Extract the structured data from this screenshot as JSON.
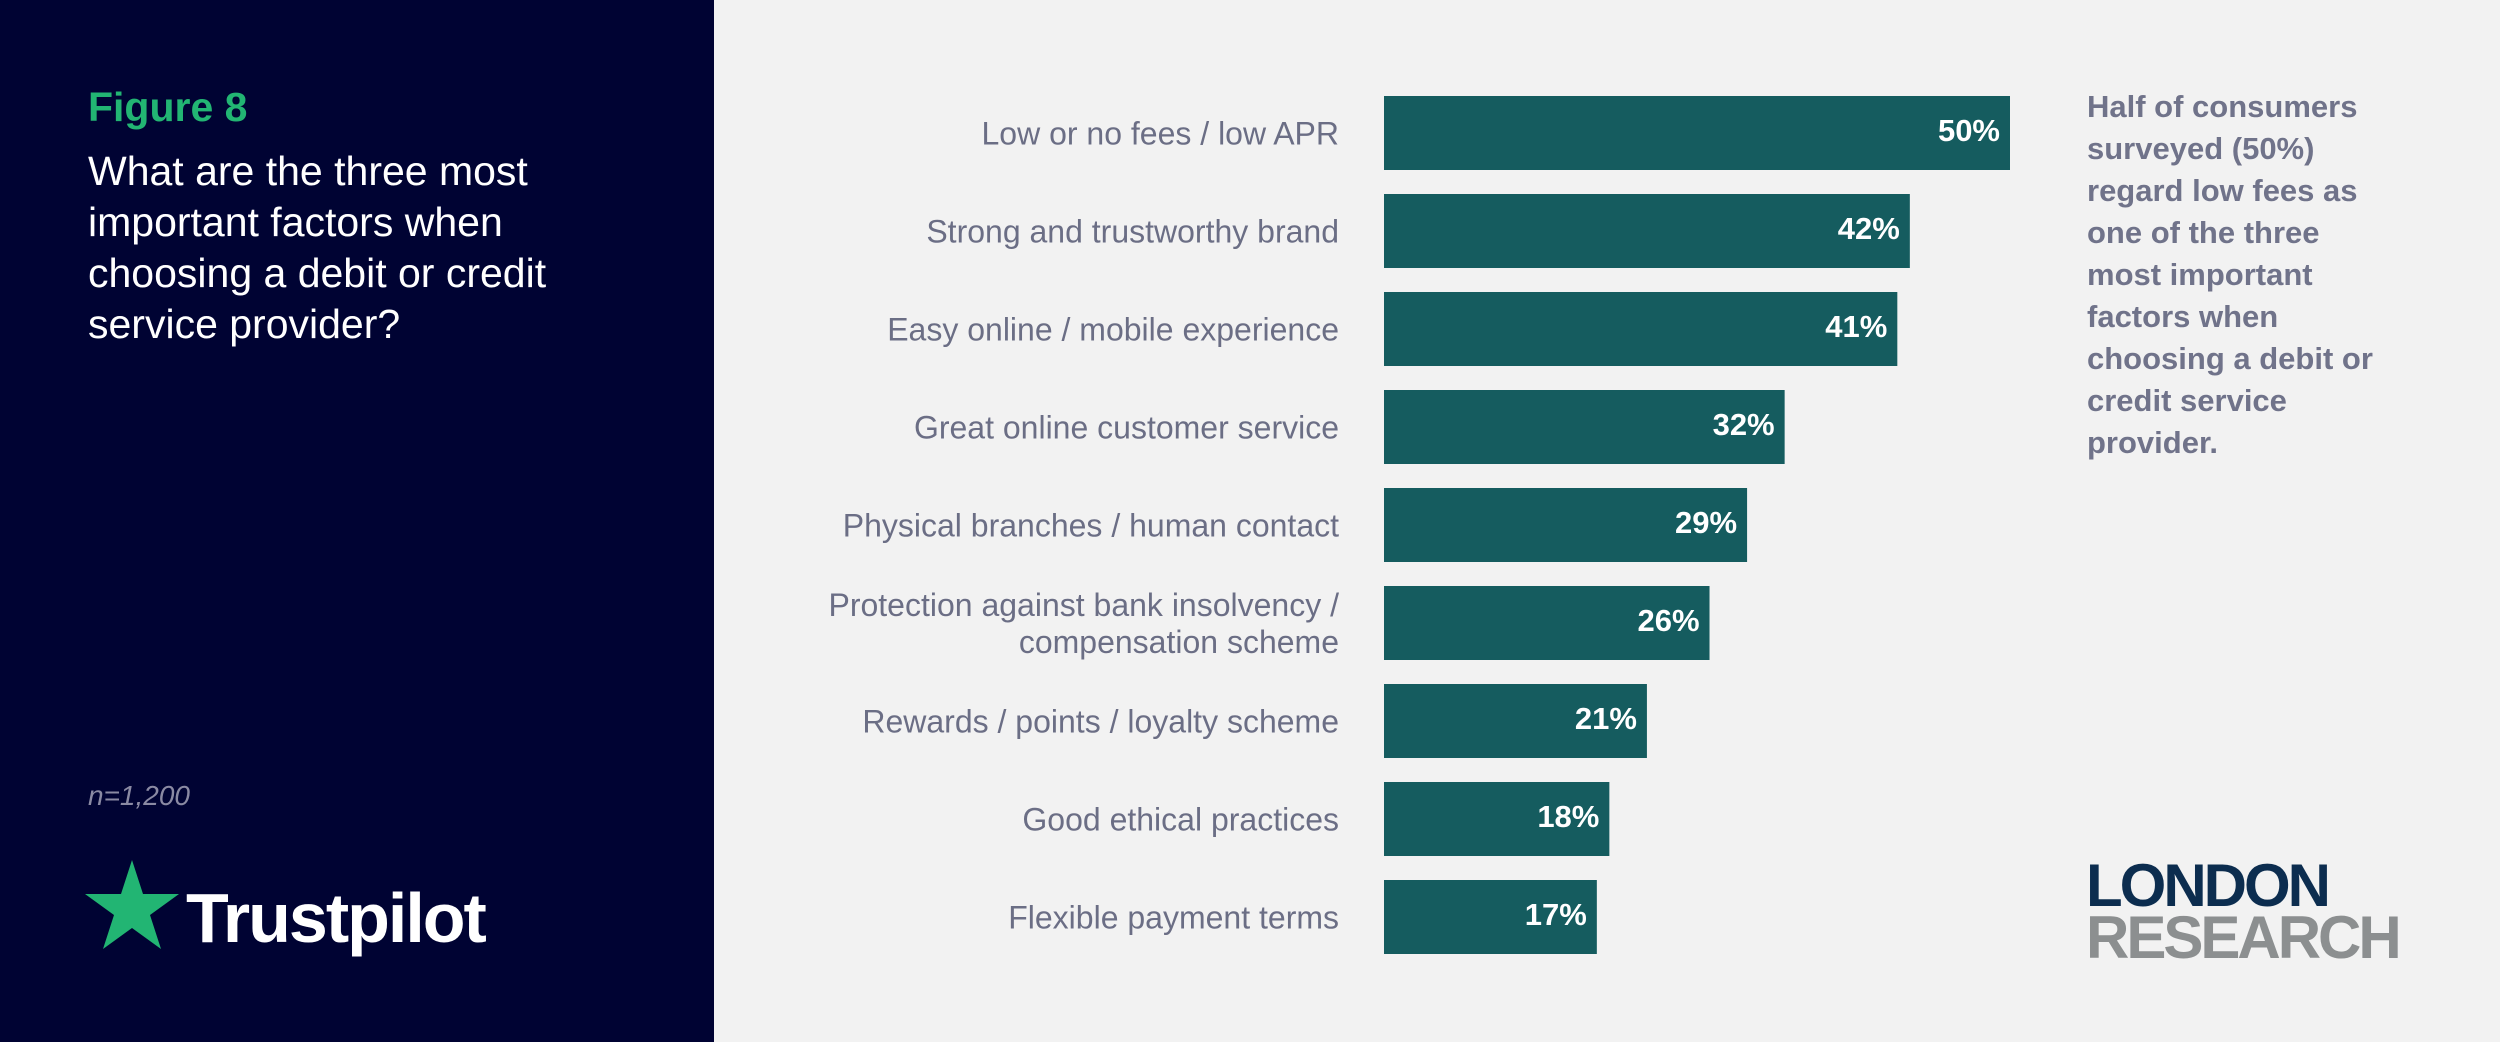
{
  "figure": {
    "label": "Figure 8",
    "title": "What are the three most important factors when choosing a debit or credit service provider?",
    "sample_size": "n=1,200"
  },
  "logos": {
    "brand": "Trustpilot",
    "research_line1": "LONDON",
    "research_line2": "RESEARCH"
  },
  "annotation": "Half of consumers surveyed (50%) regard low fees as one of the three most important factors when choosing a debit or credit service provider.",
  "colors": {
    "left_panel": "#000333",
    "accent_green": "#22b573",
    "bar": "#155c5f",
    "category_text": "#6b6e85",
    "bar_label": "#ffffff"
  },
  "chart_data": {
    "type": "bar",
    "orientation": "horizontal",
    "categories": [
      [
        "Low or no fees / low APR"
      ],
      [
        "Strong and trustworthy brand"
      ],
      [
        "Easy online / mobile experience"
      ],
      [
        "Great online customer service"
      ],
      [
        "Physical branches / human contact"
      ],
      [
        "Protection against bank insolvency /",
        "compensation scheme"
      ],
      [
        "Rewards / points / loyalty scheme"
      ],
      [
        "Good ethical practices"
      ],
      [
        "Flexible payment terms"
      ]
    ],
    "values": [
      50,
      42,
      41,
      32,
      29,
      26,
      21,
      18,
      17
    ],
    "value_labels": [
      "50%",
      "42%",
      "41%",
      "32%",
      "29%",
      "26%",
      "21%",
      "18%",
      "17%"
    ],
    "xlim": [
      0,
      50
    ],
    "grid": false,
    "legend": "none"
  }
}
